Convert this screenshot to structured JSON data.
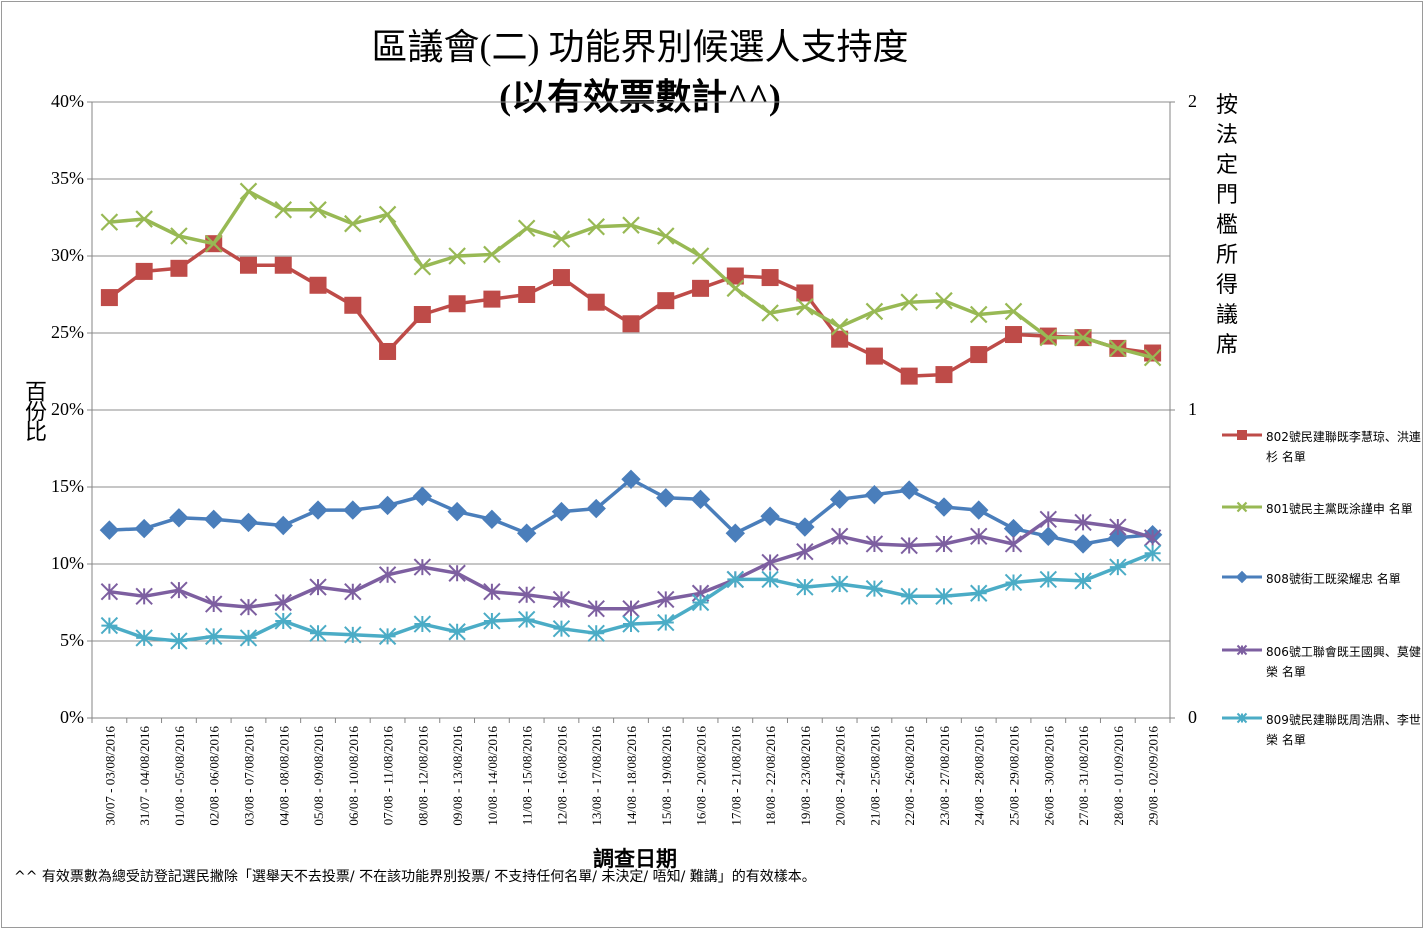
{
  "chart_data": {
    "type": "line",
    "title": "區議會(二) 功能界別候選人支持度",
    "subtitle": "(以有效票數計^^)",
    "xlabel": "調查日期",
    "ylabel": "百份比",
    "y2label": "按法定門檻所得議席",
    "ylim": [
      0,
      40
    ],
    "y_ticks": [
      "0%",
      "5%",
      "10%",
      "15%",
      "20%",
      "25%",
      "30%",
      "35%",
      "40%"
    ],
    "y2lim": [
      0,
      2
    ],
    "y2_ticks": [
      "0",
      "1",
      "2"
    ],
    "grid": true,
    "legend_position": "right",
    "categories": [
      "30/07 - 03/08/2016",
      "31/07 - 04/08/2016",
      "01/08 - 05/08/2016",
      "02/08 - 06/08/2016",
      "03/08 - 07/08/2016",
      "04/08 - 08/08/2016",
      "05/08 - 09/08/2016",
      "06/08 - 10/08/2016",
      "07/08 - 11/08/2016",
      "08/08 - 12/08/2016",
      "09/08 - 13/08/2016",
      "10/08 - 14/08/2016",
      "11/08 - 15/08/2016",
      "12/08 - 16/08/2016",
      "13/08 - 17/08/2016",
      "14/08 - 18/08/2016",
      "15/08 - 19/08/2016",
      "16/08 - 20/08/2016",
      "17/08 - 21/08/2016",
      "18/08 - 22/08/2016",
      "19/08 - 23/08/2016",
      "20/08 - 24/08/2016",
      "21/08 - 25/08/2016",
      "22/08 - 26/08/2016",
      "23/08 - 27/08/2016",
      "24/08 - 28/08/2016",
      "25/08 - 29/08/2016",
      "26/08 - 30/08/2016",
      "27/08 - 31/08/2016",
      "28/08 - 01/09/2016",
      "29/08 - 02/09/2016"
    ],
    "series": [
      {
        "name": "802號民建聯既李慧琼、洪連杉 名單",
        "color": "#be4b48",
        "marker": "square",
        "values": [
          27.3,
          29.0,
          29.2,
          30.8,
          29.4,
          29.4,
          28.1,
          26.8,
          23.8,
          26.2,
          26.9,
          27.2,
          27.5,
          28.6,
          27.0,
          25.6,
          27.1,
          27.9,
          28.7,
          28.6,
          27.6,
          24.6,
          23.5,
          22.2,
          22.3,
          23.6,
          24.9,
          24.8,
          24.7,
          24.0,
          23.7
        ]
      },
      {
        "name": "801號民主黨既涂謹申 名單",
        "color": "#98b954",
        "marker": "x",
        "values": [
          32.2,
          32.4,
          31.3,
          30.8,
          34.2,
          33.0,
          33.0,
          32.1,
          32.7,
          29.3,
          30.0,
          30.1,
          31.8,
          31.1,
          31.9,
          32.0,
          31.3,
          30.0,
          27.9,
          26.3,
          26.7,
          25.4,
          26.4,
          27.0,
          27.1,
          26.2,
          26.4,
          24.7,
          24.7,
          24.0,
          23.4
        ]
      },
      {
        "name": "808號街工既梁耀忠 名單",
        "color": "#4a7ebb",
        "marker": "diamond",
        "values": [
          12.2,
          12.3,
          13.0,
          12.9,
          12.7,
          12.5,
          13.5,
          13.5,
          13.8,
          14.4,
          13.4,
          12.9,
          12.0,
          13.4,
          13.6,
          15.5,
          14.3,
          14.2,
          12.0,
          13.1,
          12.4,
          14.2,
          14.5,
          14.8,
          13.7,
          13.5,
          12.3,
          11.8,
          11.3,
          11.7,
          11.9
        ]
      },
      {
        "name": "806號工聯會既王國興、莫健榮 名單",
        "color": "#7d5fa0",
        "marker": "star",
        "values": [
          8.2,
          7.9,
          8.3,
          7.4,
          7.2,
          7.5,
          8.5,
          8.2,
          9.3,
          9.8,
          9.4,
          8.2,
          8.0,
          7.7,
          7.1,
          7.1,
          7.7,
          8.1,
          9.0,
          10.1,
          10.8,
          11.8,
          11.3,
          11.2,
          11.3,
          11.8,
          11.3,
          12.9,
          12.7,
          12.4,
          11.7
        ]
      },
      {
        "name": "809號民建聯既周浩鼎、李世榮 名單",
        "color": "#4bacc6",
        "marker": "asterisk",
        "values": [
          6.0,
          5.2,
          5.0,
          5.3,
          5.2,
          6.3,
          5.5,
          5.4,
          5.3,
          6.1,
          5.6,
          6.3,
          6.4,
          5.8,
          5.5,
          6.1,
          6.2,
          7.5,
          9.0,
          9.0,
          8.5,
          8.7,
          8.4,
          7.9,
          7.9,
          8.1,
          8.8,
          9.0,
          8.9,
          9.8,
          10.7
        ]
      }
    ]
  },
  "footnote": "^^ 有效票數為總受訪登記選民撇除「選舉天不去投票/ 不在該功能界別投票/ 不支持任何名單/ 未決定/ 唔知/ 難講」的有效樣本。"
}
